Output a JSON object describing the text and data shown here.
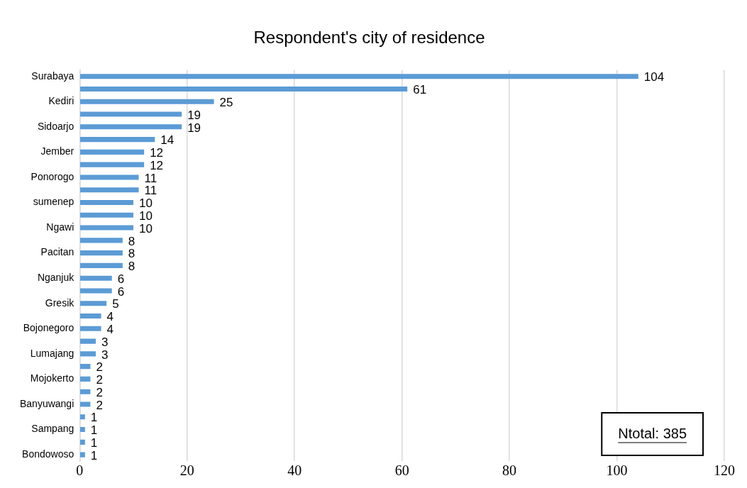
{
  "chart_data": {
    "type": "bar",
    "orientation": "horizontal",
    "title": "Respondent's city of residence",
    "categories": [
      "Surabaya",
      null,
      "Kediri",
      null,
      "Sidoarjo",
      null,
      "Jember",
      null,
      "Ponorogo",
      null,
      "sumenep",
      null,
      "Ngawi",
      null,
      "Pacitan",
      null,
      "Nganjuk",
      null,
      "Gresik",
      null,
      "Bojonegoro",
      null,
      "Lumajang",
      null,
      "Mojokerto",
      null,
      "Banyuwangi",
      null,
      "Sampang",
      null,
      "Bondowoso"
    ],
    "values": [
      104,
      61,
      25,
      19,
      19,
      14,
      12,
      12,
      11,
      11,
      10,
      10,
      10,
      8,
      8,
      8,
      6,
      6,
      5,
      4,
      4,
      3,
      3,
      2,
      2,
      2,
      2,
      1,
      1,
      1,
      1
    ],
    "color": "#5b9bd5",
    "xlim": [
      0,
      120
    ],
    "xticks": [
      0,
      20,
      40,
      60,
      80,
      100,
      120
    ],
    "grid": "x",
    "data_labels": true,
    "legend": false,
    "annotations": [
      "Ntotal: 385"
    ]
  }
}
